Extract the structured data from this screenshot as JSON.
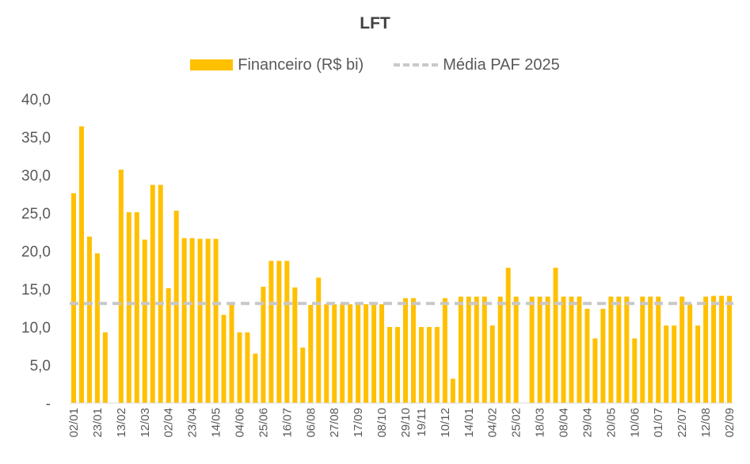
{
  "chart_data": {
    "type": "bar",
    "title": "LFT",
    "legend_position": "top",
    "series": [
      {
        "name": "Financeiro (R$ bi)",
        "color": "#FFC000",
        "values": [
          27.6,
          36.4,
          21.9,
          19.7,
          9.3,
          null,
          30.7,
          25.1,
          25.1,
          21.5,
          28.7,
          28.7,
          15.1,
          25.3,
          21.7,
          21.7,
          21.6,
          21.6,
          21.6,
          11.6,
          13.0,
          9.3,
          9.3,
          6.5,
          15.3,
          18.7,
          18.7,
          18.7,
          15.2,
          7.3,
          12.9,
          16.5,
          13.0,
          13.0,
          13.0,
          13.0,
          13.0,
          13.0,
          13.0,
          13.0,
          10.0,
          10.0,
          13.8,
          13.8,
          10.0,
          10.0,
          10.0,
          13.8,
          3.2,
          14.0,
          14.0,
          14.0,
          14.0,
          10.2,
          14.0,
          17.8,
          14.0,
          null,
          14.0,
          14.0,
          14.0,
          17.8,
          14.0,
          14.0,
          14.0,
          12.4,
          8.5,
          12.4,
          14.0,
          14.0,
          14.0,
          8.5,
          14.0,
          14.0,
          14.0,
          10.2,
          10.2,
          14.0,
          13.0,
          10.2,
          14.0,
          14.1,
          14.1,
          14.1
        ]
      },
      {
        "name": "Média PAF 2025",
        "color": "#C8C8C8",
        "style": "dashed",
        "value": 13.1
      }
    ],
    "x_tick_labels": [
      "02/01",
      "23/01",
      "13/02",
      "12/03",
      "02/04",
      "23/04",
      "14/05",
      "04/06",
      "25/06",
      "16/07",
      "06/08",
      "27/08",
      "17/09",
      "08/10",
      "29/10",
      "19/11",
      "10/12",
      "14/01",
      "04/02",
      "25/02",
      "18/03",
      "08/04",
      "29/04",
      "20/05",
      "10/06",
      "01/07",
      "22/07",
      "12/08",
      "02/09"
    ],
    "y_tick_labels": [
      "-",
      "5,0",
      "10,0",
      "15,0",
      "20,0",
      "25,0",
      "30,0",
      "35,0",
      "40,0"
    ],
    "ylim": [
      0,
      40
    ],
    "grid": false
  }
}
